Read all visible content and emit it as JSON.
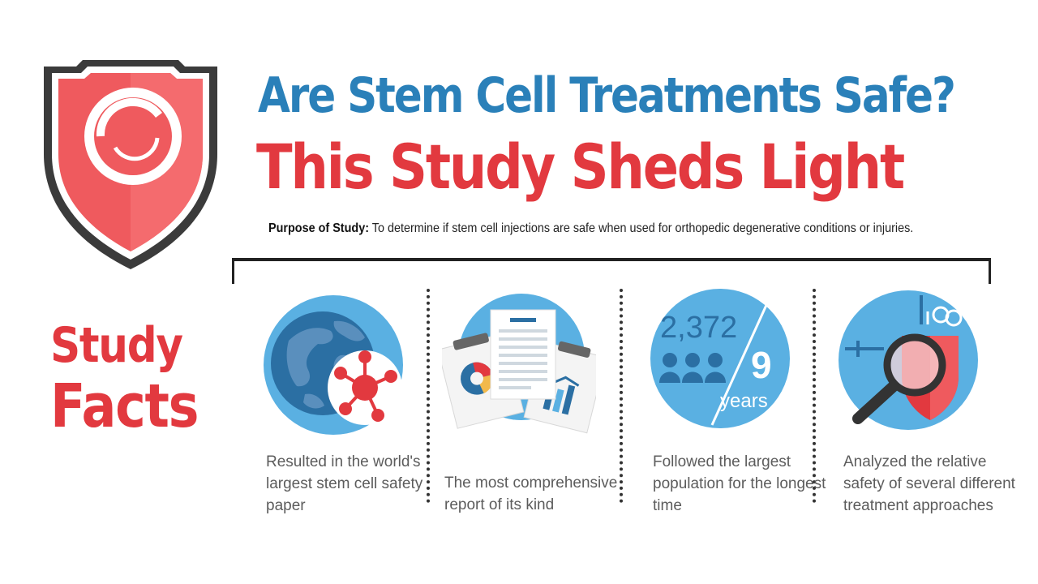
{
  "header": {
    "title_line1": "Are Stem Cell Treatments Safe?",
    "title_line2": "This Study Sheds Light",
    "purpose_label": "Purpose of Study:",
    "purpose_text": "To determine if stem cell injections are safe when used for orthopedic degenerative conditions or injuries."
  },
  "section": {
    "label_line1": "Study",
    "label_line2": "Facts"
  },
  "facts": [
    {
      "icon": "globe-molecule-icon",
      "caption": "Resulted in the world's largest stem cell safety paper"
    },
    {
      "icon": "documents-report-icon",
      "caption": "The most comprehensive report of its kind"
    },
    {
      "icon": "population-years-icon",
      "caption": "Followed the largest population for the longest time",
      "stat_number": "2,372",
      "stat_years_value": "9",
      "stat_years_label": "years"
    },
    {
      "icon": "magnifier-shield-icon",
      "caption": "Analyzed the relative safety of several different treatment approaches"
    }
  ],
  "colors": {
    "blue": "#2a80b9",
    "red": "#e2393f",
    "circle_blue": "#5ab0e2",
    "dark_blue": "#2b6fa3"
  }
}
